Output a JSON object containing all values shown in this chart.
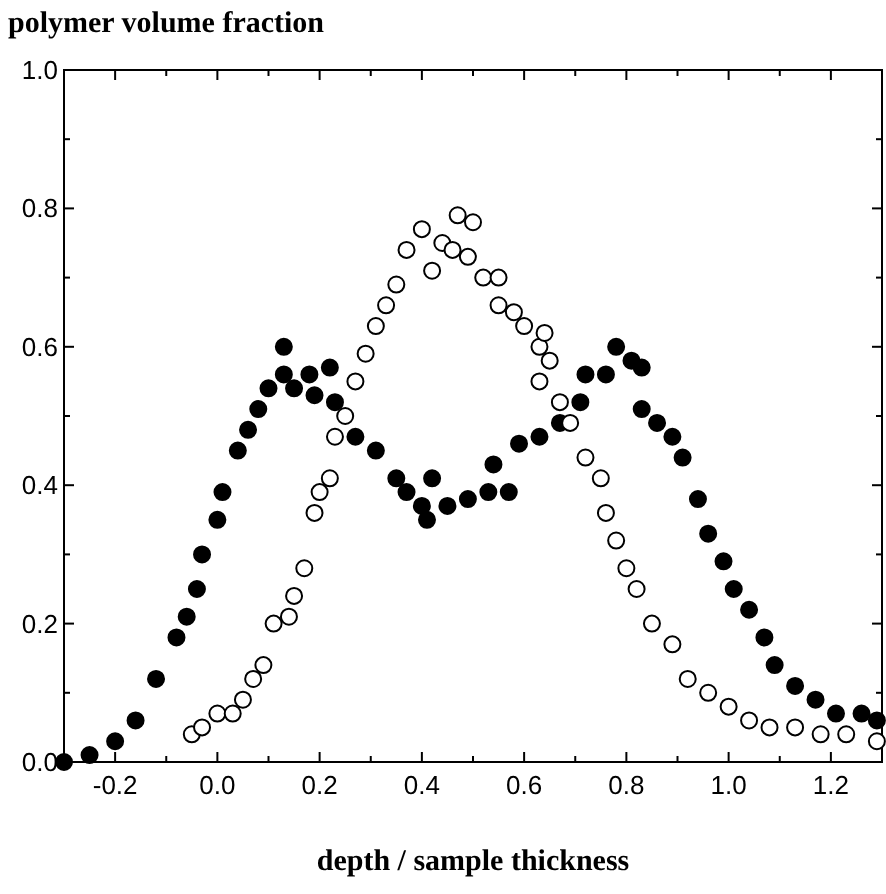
{
  "chart_data": {
    "type": "scatter",
    "title": "polymer volume fraction",
    "xlabel": "depth / sample thickness",
    "marker": "circle",
    "grid": false,
    "xlim": [
      -0.3,
      1.3
    ],
    "xticks": [
      {
        "value": -0.2,
        "label": "-0.2"
      },
      {
        "value": -0.1,
        "label": null
      },
      {
        "value": 0,
        "label": "0.0"
      },
      {
        "value": 0.1,
        "label": null
      },
      {
        "value": 0.2,
        "label": "0.2"
      },
      {
        "value": 0.3,
        "label": null
      },
      {
        "value": 0.4,
        "label": "0.4"
      },
      {
        "value": 0.5,
        "label": null
      },
      {
        "value": 0.6,
        "label": "0.6"
      },
      {
        "value": 0.7,
        "label": null
      },
      {
        "value": 0.8,
        "label": "0.8"
      },
      {
        "value": 0.9,
        "label": null
      },
      {
        "value": 1,
        "label": "1.0"
      },
      {
        "value": 1.1,
        "label": null
      },
      {
        "value": 1.2,
        "label": "1.2"
      }
    ],
    "ylim": [
      0,
      1
    ],
    "yticks": [
      {
        "value": 0,
        "label": "0.0"
      },
      {
        "value": 0.1,
        "label": null
      },
      {
        "value": 0.2,
        "label": "0.2"
      },
      {
        "value": 0.3,
        "label": null
      },
      {
        "value": 0.4,
        "label": "0.4"
      },
      {
        "value": 0.5,
        "label": null
      },
      {
        "value": 0.6,
        "label": "0.6"
      },
      {
        "value": 0.7,
        "label": null
      },
      {
        "value": 0.8,
        "label": "0.8"
      },
      {
        "value": 0.9,
        "label": null
      },
      {
        "value": 1,
        "label": "1.0"
      }
    ],
    "series": [
      {
        "color": "#000000",
        "x": [
          -0.3,
          -0.25,
          -0.2,
          -0.16,
          -0.12,
          -0.08,
          -0.06,
          -0.04,
          -0.03,
          0,
          0.01,
          0.04,
          0.06,
          0.08,
          0.1,
          0.13,
          0.13,
          0.15,
          0.18,
          0.22,
          0.19,
          0.23,
          0.27,
          0.31,
          0.35,
          0.37,
          0.4,
          0.42,
          0.41,
          0.45,
          0.49,
          0.53,
          0.57,
          0.54,
          0.59,
          0.63,
          0.67,
          0.71,
          0.72,
          0.76,
          0.78,
          0.81,
          0.83,
          0.83,
          0.86,
          0.89,
          0.91,
          0.94,
          0.96,
          0.99,
          1.01,
          1.04,
          1.07,
          1.09,
          1.13,
          1.17,
          1.21,
          1.26,
          1.29
        ],
        "values": [
          0,
          0.01,
          0.03,
          0.06,
          0.12,
          0.18,
          0.21,
          0.25,
          0.3,
          0.35,
          0.39,
          0.45,
          0.48,
          0.51,
          0.54,
          0.56,
          0.6,
          0.54,
          0.56,
          0.57,
          0.53,
          0.52,
          0.47,
          0.45,
          0.41,
          0.39,
          0.37,
          0.41,
          0.35,
          0.37,
          0.38,
          0.39,
          0.39,
          0.43,
          0.46,
          0.47,
          0.49,
          0.52,
          0.56,
          0.56,
          0.6,
          0.58,
          0.57,
          0.51,
          0.49,
          0.47,
          0.44,
          0.38,
          0.33,
          0.29,
          0.25,
          0.22,
          0.18,
          0.14,
          0.11,
          0.09,
          0.07,
          0.07,
          0.06
        ]
      },
      {
        "color": "#ffffff",
        "x": [
          -0.05,
          -0.03,
          0,
          0.03,
          0.05,
          0.07,
          0.09,
          0.11,
          0.14,
          0.15,
          0.17,
          0.19,
          0.2,
          0.22,
          0.23,
          0.25,
          0.27,
          0.29,
          0.31,
          0.33,
          0.35,
          0.37,
          0.4,
          0.42,
          0.44,
          0.46,
          0.47,
          0.5,
          0.49,
          0.52,
          0.55,
          0.55,
          0.58,
          0.6,
          0.63,
          0.64,
          0.63,
          0.65,
          0.67,
          0.69,
          0.72,
          0.75,
          0.76,
          0.78,
          0.8,
          0.82,
          0.85,
          0.89,
          0.92,
          0.96,
          1,
          1.04,
          1.08,
          1.13,
          1.18,
          1.23,
          1.29
        ],
        "values": [
          0.04,
          0.05,
          0.07,
          0.07,
          0.09,
          0.12,
          0.14,
          0.2,
          0.21,
          0.24,
          0.28,
          0.36,
          0.39,
          0.41,
          0.47,
          0.5,
          0.55,
          0.59,
          0.63,
          0.66,
          0.69,
          0.74,
          0.77,
          0.71,
          0.75,
          0.74,
          0.79,
          0.78,
          0.73,
          0.7,
          0.7,
          0.66,
          0.65,
          0.63,
          0.6,
          0.62,
          0.55,
          0.58,
          0.52,
          0.49,
          0.44,
          0.41,
          0.36,
          0.32,
          0.28,
          0.25,
          0.2,
          0.17,
          0.12,
          0.1,
          0.08,
          0.06,
          0.05,
          0.05,
          0.04,
          0.04,
          0.03
        ]
      }
    ]
  }
}
